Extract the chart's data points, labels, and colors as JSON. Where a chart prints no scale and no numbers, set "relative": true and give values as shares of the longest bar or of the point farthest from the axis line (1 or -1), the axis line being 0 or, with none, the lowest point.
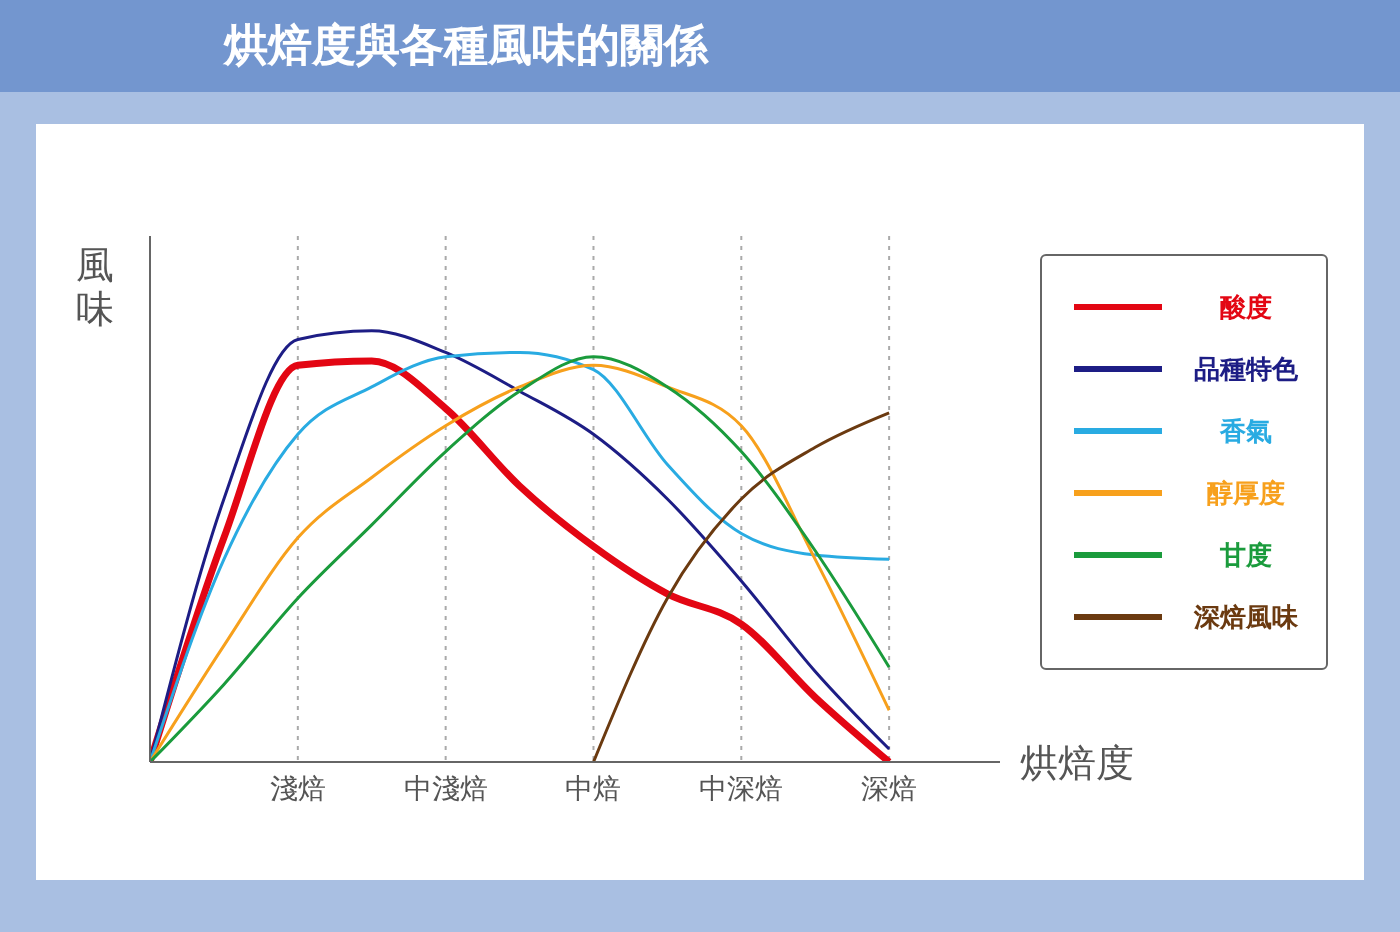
{
  "chart_data": {
    "type": "line",
    "title": "烘焙度與各種風味的關係",
    "xlabel": "烘焙度",
    "ylabel": "風味",
    "relative": true,
    "grid": "x",
    "legend": "right",
    "marker": "none",
    "categories": [
      null,
      null,
      "淺焙",
      null,
      "中淺焙",
      null,
      "中焙",
      null,
      "中深焙",
      null,
      "深焙"
    ],
    "series": [
      {
        "name": "酸度",
        "color": "#e30613",
        "values": [
          0,
          0.52,
          0.92,
          0.93,
          0.82,
          0.64,
          0.5,
          0.39,
          0.32,
          0.15,
          0
        ]
      },
      {
        "name": "品種特色",
        "color": "#1d1d85",
        "values": [
          0,
          0.61,
          0.98,
          1,
          0.95,
          0.86,
          0.76,
          0.61,
          0.42,
          0.21,
          0.03
        ]
      },
      {
        "name": "香氣",
        "color": "#29abe2",
        "values": [
          0,
          0.47,
          0.76,
          0.87,
          0.94,
          0.95,
          0.91,
          0.69,
          0.53,
          0.48,
          0.47
        ]
      },
      {
        "name": "醇厚度",
        "color": "#f7a01c",
        "values": [
          0,
          0.27,
          0.52,
          0.66,
          0.78,
          0.87,
          0.92,
          0.87,
          0.78,
          0.47,
          0.12
        ]
      },
      {
        "name": "甘度",
        "color": "#1a9b3c",
        "values": [
          0,
          0.18,
          0.38,
          0.55,
          0.72,
          0.86,
          0.94,
          0.87,
          0.72,
          0.49,
          0.22
        ]
      },
      {
        "name": "深焙風味",
        "color": "#6b3a10",
        "values": [
          null,
          null,
          null,
          null,
          null,
          null,
          0,
          0.38,
          0.61,
          0.73,
          0.81
        ]
      }
    ]
  }
}
